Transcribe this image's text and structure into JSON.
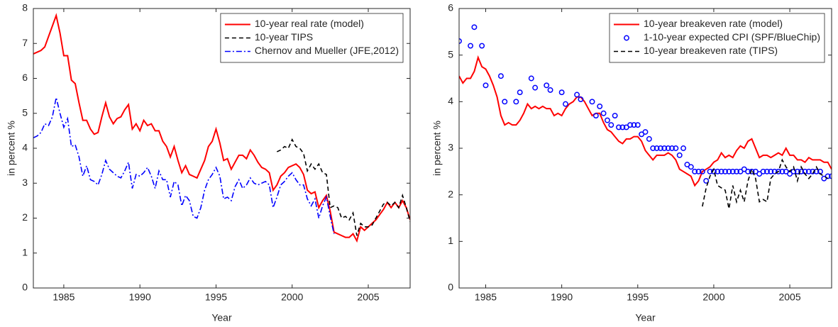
{
  "chart_data": [
    {
      "type": "line",
      "xlabel": "Year",
      "ylabel": "in percent %",
      "xlim": [
        1983,
        2007.75
      ],
      "ylim": [
        0,
        8
      ],
      "xticks": [
        1985,
        1990,
        1995,
        2000,
        2005
      ],
      "yticks": [
        0,
        1,
        2,
        3,
        4,
        5,
        6,
        7,
        8
      ],
      "grid": false,
      "legend": "northeast",
      "series": [
        {
          "name": "10-year real rate (model)",
          "color": "#ff0000",
          "style": "solid",
          "x": [
            1983,
            1983.25,
            1983.5,
            1983.75,
            1984,
            1984.25,
            1984.5,
            1984.75,
            1985,
            1985.25,
            1985.5,
            1985.75,
            1986,
            1986.25,
            1986.5,
            1986.75,
            1987,
            1987.25,
            1987.5,
            1987.75,
            1988,
            1988.25,
            1988.5,
            1988.75,
            1989,
            1989.25,
            1989.5,
            1989.75,
            1990,
            1990.25,
            1990.5,
            1990.75,
            1991,
            1991.25,
            1991.5,
            1991.75,
            1992,
            1992.25,
            1992.5,
            1992.75,
            1993,
            1993.25,
            1993.5,
            1993.75,
            1994,
            1994.25,
            1994.5,
            1994.75,
            1995,
            1995.25,
            1995.5,
            1995.75,
            1996,
            1996.25,
            1996.5,
            1996.75,
            1997,
            1997.25,
            1997.5,
            1997.75,
            1998,
            1998.25,
            1998.5,
            1998.75,
            1999,
            1999.25,
            1999.5,
            1999.75,
            2000,
            2000.25,
            2000.5,
            2000.75,
            2001,
            2001.25,
            2001.5,
            2001.75,
            2002,
            2002.25,
            2002.5,
            2002.75,
            2003,
            2003.25,
            2003.5,
            2003.75,
            2004,
            2004.25,
            2004.5,
            2004.75,
            2005,
            2005.25,
            2005.5,
            2005.75,
            2006,
            2006.25,
            2006.5,
            2006.75,
            2007,
            2007.25,
            2007.5,
            2007.75
          ],
          "values": [
            6.7,
            6.75,
            6.8,
            6.9,
            7.2,
            7.5,
            7.8,
            7.3,
            6.65,
            6.65,
            5.95,
            5.85,
            5.3,
            4.8,
            4.8,
            4.55,
            4.4,
            4.45,
            4.9,
            5.3,
            4.9,
            4.7,
            4.85,
            4.9,
            5.1,
            5.25,
            4.55,
            4.7,
            4.5,
            4.8,
            4.65,
            4.7,
            4.5,
            4.5,
            4.2,
            4.05,
            3.75,
            4.05,
            3.65,
            3.3,
            3.5,
            3.25,
            3.2,
            3.15,
            3.4,
            3.65,
            4.05,
            4.2,
            4.55,
            4.15,
            3.65,
            3.7,
            3.4,
            3.6,
            3.8,
            3.8,
            3.7,
            3.95,
            3.8,
            3.6,
            3.45,
            3.4,
            3.3,
            2.8,
            2.95,
            3.2,
            3.3,
            3.45,
            3.5,
            3.55,
            3.45,
            3.25,
            2.8,
            2.7,
            2.75,
            2.3,
            2.5,
            2.65,
            2.2,
            1.6,
            1.55,
            1.5,
            1.45,
            1.45,
            1.55,
            1.35,
            1.75,
            1.65,
            1.75,
            1.85,
            1.95,
            2.1,
            2.25,
            2.45,
            2.3,
            2.45,
            2.3,
            2.5,
            2.3,
            1.95
          ]
        },
        {
          "name": "10-year TIPS",
          "color": "#000000",
          "style": "dashed",
          "x": [
            1999,
            1999.25,
            1999.5,
            1999.75,
            2000,
            2000.25,
            2000.5,
            2000.75,
            2001,
            2001.25,
            2001.5,
            2001.75,
            2002,
            2002.25,
            2002.5,
            2002.75,
            2003,
            2003.25,
            2003.5,
            2003.75,
            2004,
            2004.25,
            2004.5,
            2004.75,
            2005,
            2005.25,
            2005.5,
            2005.75,
            2006,
            2006.25,
            2006.5,
            2006.75,
            2007,
            2007.25,
            2007.5,
            2007.75
          ],
          "values": [
            3.9,
            3.95,
            4.05,
            4.0,
            4.25,
            4.05,
            4.0,
            3.85,
            3.35,
            3.55,
            3.4,
            3.55,
            3.3,
            3.25,
            2.3,
            2.35,
            2.3,
            2.0,
            2.05,
            1.95,
            2.15,
            1.5,
            1.85,
            1.75,
            1.75,
            1.8,
            2.0,
            2.2,
            2.4,
            2.45,
            2.35,
            2.45,
            2.3,
            2.65,
            2.3,
            1.9
          ]
        },
        {
          "name": "Chernov and Mueller (JFE,2012)",
          "color": "#0000ff",
          "style": "dashdot",
          "x": [
            1983,
            1983.25,
            1983.5,
            1983.75,
            1984,
            1984.25,
            1984.5,
            1984.75,
            1985,
            1985.25,
            1985.5,
            1985.75,
            1986,
            1986.25,
            1986.5,
            1986.75,
            1987,
            1987.25,
            1987.5,
            1987.75,
            1988,
            1988.25,
            1988.5,
            1988.75,
            1989,
            1989.25,
            1989.5,
            1989.75,
            1990,
            1990.25,
            1990.5,
            1990.75,
            1991,
            1991.25,
            1991.5,
            1991.75,
            1992,
            1992.25,
            1992.5,
            1992.75,
            1993,
            1993.25,
            1993.5,
            1993.75,
            1994,
            1994.25,
            1994.5,
            1994.75,
            1995,
            1995.25,
            1995.5,
            1995.75,
            1996,
            1996.25,
            1996.5,
            1996.75,
            1997,
            1997.25,
            1997.5,
            1997.75,
            1998,
            1998.25,
            1998.5,
            1998.75,
            1999,
            1999.25,
            1999.5,
            1999.75,
            2000,
            2000.25,
            2000.5,
            2000.75,
            2001,
            2001.25,
            2001.5,
            2001.75,
            2002,
            2002.25,
            2002.5,
            2002.75
          ],
          "values": [
            4.3,
            4.35,
            4.45,
            4.7,
            4.65,
            4.9,
            5.45,
            5.0,
            4.6,
            4.85,
            4.05,
            4.1,
            3.75,
            3.2,
            3.5,
            3.1,
            3.05,
            2.95,
            3.25,
            3.65,
            3.4,
            3.3,
            3.2,
            3.15,
            3.35,
            3.6,
            2.85,
            3.25,
            3.2,
            3.3,
            3.45,
            3.2,
            2.85,
            3.35,
            3.1,
            3.1,
            2.6,
            3.05,
            2.95,
            2.35,
            2.65,
            2.5,
            2.05,
            2.0,
            2.3,
            2.8,
            3.1,
            3.25,
            3.45,
            3.2,
            2.55,
            2.6,
            2.5,
            2.9,
            3.1,
            2.85,
            2.95,
            3.15,
            3.0,
            2.95,
            3.0,
            3.05,
            2.95,
            2.3,
            2.6,
            2.95,
            3.05,
            3.2,
            3.3,
            3.1,
            2.95,
            2.95,
            2.55,
            2.35,
            2.55,
            2.0,
            2.35,
            2.6,
            2.05,
            1.55
          ]
        }
      ]
    },
    {
      "type": "line",
      "xlabel": "Year",
      "ylabel": "in percent %",
      "xlim": [
        1983.25,
        2007.75
      ],
      "ylim": [
        0,
        6
      ],
      "xticks": [
        1985,
        1990,
        1995,
        2000,
        2005
      ],
      "yticks": [
        0,
        1,
        2,
        3,
        4,
        5,
        6
      ],
      "grid": false,
      "legend": "northeast",
      "series": [
        {
          "name": "10-year breakeven rate (model)",
          "color": "#ff0000",
          "style": "solid",
          "x": [
            1983.25,
            1983.5,
            1983.75,
            1984,
            1984.25,
            1984.5,
            1984.75,
            1985,
            1985.25,
            1985.5,
            1985.75,
            1986,
            1986.25,
            1986.5,
            1986.75,
            1987,
            1987.25,
            1987.5,
            1987.75,
            1988,
            1988.25,
            1988.5,
            1988.75,
            1989,
            1989.25,
            1989.5,
            1989.75,
            1990,
            1990.25,
            1990.5,
            1990.75,
            1991,
            1991.25,
            1991.5,
            1991.75,
            1992,
            1992.25,
            1992.5,
            1992.75,
            1993,
            1993.25,
            1993.5,
            1993.75,
            1994,
            1994.25,
            1994.5,
            1994.75,
            1995,
            1995.25,
            1995.5,
            1995.75,
            1996,
            1996.25,
            1996.5,
            1996.75,
            1997,
            1997.25,
            1997.5,
            1997.75,
            1998,
            1998.25,
            1998.5,
            1998.75,
            1999,
            1999.25,
            1999.5,
            1999.75,
            2000,
            2000.25,
            2000.5,
            2000.75,
            2001,
            2001.25,
            2001.5,
            2001.75,
            2002,
            2002.25,
            2002.5,
            2002.75,
            2003,
            2003.25,
            2003.5,
            2003.75,
            2004,
            2004.25,
            2004.5,
            2004.75,
            2005,
            2005.25,
            2005.5,
            2005.75,
            2006,
            2006.25,
            2006.5,
            2006.75,
            2007,
            2007.25,
            2007.5,
            2007.75
          ],
          "values": [
            4.55,
            4.4,
            4.5,
            4.5,
            4.65,
            4.95,
            4.75,
            4.7,
            4.55,
            4.35,
            4.1,
            3.7,
            3.5,
            3.55,
            3.5,
            3.5,
            3.6,
            3.75,
            3.95,
            3.85,
            3.9,
            3.85,
            3.9,
            3.85,
            3.85,
            3.7,
            3.75,
            3.7,
            3.85,
            3.95,
            4.0,
            4.1,
            4.1,
            4.0,
            3.85,
            3.7,
            3.75,
            3.75,
            3.55,
            3.4,
            3.35,
            3.25,
            3.15,
            3.1,
            3.2,
            3.2,
            3.25,
            3.25,
            3.15,
            2.95,
            2.85,
            2.75,
            2.85,
            2.85,
            2.85,
            2.9,
            2.85,
            2.75,
            2.55,
            2.5,
            2.45,
            2.4,
            2.2,
            2.3,
            2.5,
            2.55,
            2.6,
            2.7,
            2.75,
            2.9,
            2.8,
            2.85,
            2.8,
            2.95,
            3.05,
            3.0,
            3.15,
            3.2,
            3.0,
            2.8,
            2.85,
            2.85,
            2.8,
            2.85,
            2.9,
            2.85,
            3.0,
            2.85,
            2.85,
            2.75,
            2.75,
            2.7,
            2.8,
            2.75,
            2.75,
            2.75,
            2.7,
            2.7,
            2.55
          ]
        },
        {
          "name": "1-10-year expected CPI (SPF/BlueChip)",
          "color": "#0000ff",
          "style": "markers",
          "x": [
            1983.25,
            1984,
            1984.25,
            1984.75,
            1985,
            1986,
            1986.25,
            1987,
            1987.25,
            1988,
            1988.25,
            1989,
            1989.25,
            1990,
            1990.25,
            1991,
            1991.25,
            1992,
            1992.25,
            1992.5,
            1992.75,
            1993,
            1993.25,
            1993.5,
            1993.75,
            1994,
            1994.25,
            1994.5,
            1994.75,
            1995,
            1995.25,
            1995.5,
            1995.75,
            1996,
            1996.25,
            1996.5,
            1996.75,
            1997,
            1997.25,
            1997.5,
            1997.75,
            1998,
            1998.25,
            1998.5,
            1998.75,
            1999,
            1999.25,
            1999.5,
            1999.75,
            2000,
            2000.25,
            2000.5,
            2000.75,
            2001,
            2001.25,
            2001.5,
            2001.75,
            2002,
            2002.25,
            2002.5,
            2002.75,
            2003,
            2003.25,
            2003.5,
            2003.75,
            2004,
            2004.25,
            2004.5,
            2004.75,
            2005,
            2005.25,
            2005.5,
            2005.75,
            2006,
            2006.25,
            2006.5,
            2006.75,
            2007,
            2007.25,
            2007.5,
            2007.75
          ],
          "values": [
            5.3,
            5.2,
            5.6,
            5.2,
            4.35,
            4.55,
            4.0,
            4.0,
            4.2,
            4.5,
            4.3,
            4.35,
            4.25,
            4.2,
            3.95,
            4.15,
            4.05,
            4.0,
            3.7,
            3.9,
            3.75,
            3.6,
            3.5,
            3.7,
            3.45,
            3.45,
            3.45,
            3.5,
            3.5,
            3.5,
            3.3,
            3.35,
            3.2,
            3.0,
            3.0,
            3.0,
            3.0,
            3.0,
            3.0,
            3.0,
            2.85,
            3.0,
            2.65,
            2.6,
            2.5,
            2.5,
            2.5,
            2.3,
            2.5,
            2.5,
            2.5,
            2.5,
            2.5,
            2.5,
            2.5,
            2.5,
            2.5,
            2.55,
            2.5,
            2.5,
            2.5,
            2.45,
            2.5,
            2.5,
            2.5,
            2.5,
            2.5,
            2.5,
            2.5,
            2.45,
            2.5,
            2.5,
            2.5,
            2.5,
            2.5,
            2.5,
            2.5,
            2.5,
            2.35,
            2.4,
            2.4
          ]
        },
        {
          "name": "10-year breakeven rate (TIPS)",
          "color": "#000000",
          "style": "dashed",
          "x": [
            1999.25,
            1999.5,
            1999.75,
            2000,
            2000.25,
            2000.5,
            2000.75,
            2001,
            2001.25,
            2001.5,
            2001.75,
            2002,
            2002.25,
            2002.5,
            2002.75,
            2003,
            2003.25,
            2003.5,
            2003.75,
            2004,
            2004.25,
            2004.5,
            2004.75,
            2005,
            2005.25,
            2005.5,
            2005.75,
            2006,
            2006.25,
            2006.5,
            2006.75,
            2007,
            2007.25,
            2007.5
          ],
          "values": [
            1.75,
            2.15,
            2.4,
            2.55,
            2.2,
            2.15,
            2.1,
            1.7,
            2.2,
            1.85,
            2.1,
            1.85,
            2.3,
            2.55,
            2.35,
            1.85,
            1.9,
            1.85,
            2.35,
            2.45,
            2.5,
            2.75,
            2.6,
            2.5,
            2.6,
            2.3,
            2.6,
            2.45,
            2.35,
            2.45,
            2.6,
            2.45,
            2.4,
            2.35
          ]
        }
      ]
    }
  ]
}
